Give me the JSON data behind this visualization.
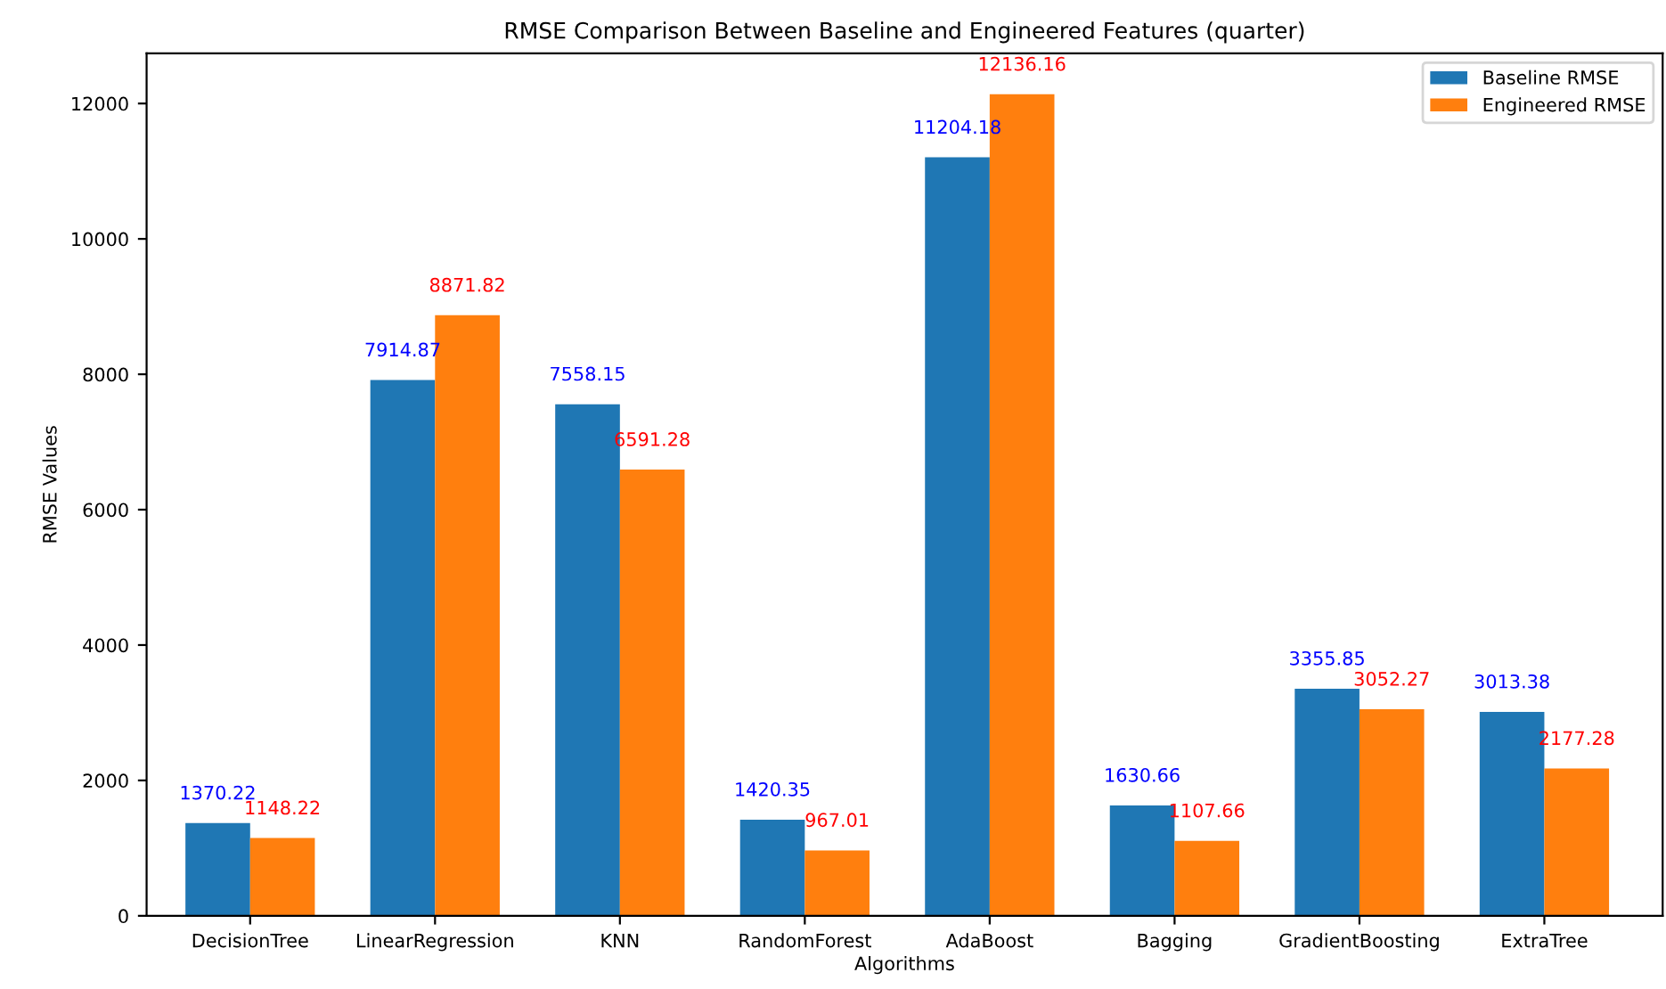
{
  "chart_data": {
    "type": "bar",
    "title": "RMSE Comparison Between Baseline and Engineered Features (quarter)",
    "xlabel": "Algorithms",
    "ylabel": "RMSE Values",
    "categories": [
      "DecisionTree",
      "LinearRegression",
      "KNN",
      "RandomForest",
      "AdaBoost",
      "Bagging",
      "GradientBoosting",
      "ExtraTree"
    ],
    "series": [
      {
        "name": "Baseline RMSE",
        "color": "#1f77b4",
        "values": [
          1370.22,
          7914.87,
          7558.15,
          1420.35,
          11204.18,
          1630.66,
          3355.85,
          3013.38
        ]
      },
      {
        "name": "Engineered RMSE",
        "color": "#ff7f0e",
        "values": [
          1148.22,
          8871.82,
          6591.28,
          967.01,
          12136.16,
          1107.66,
          3052.27,
          2177.28
        ]
      }
    ],
    "ylim": [
      0,
      12740
    ],
    "yticks": [
      0,
      2000,
      4000,
      6000,
      8000,
      10000,
      12000
    ],
    "data_labels": true,
    "legend": "top right",
    "grid": false
  }
}
